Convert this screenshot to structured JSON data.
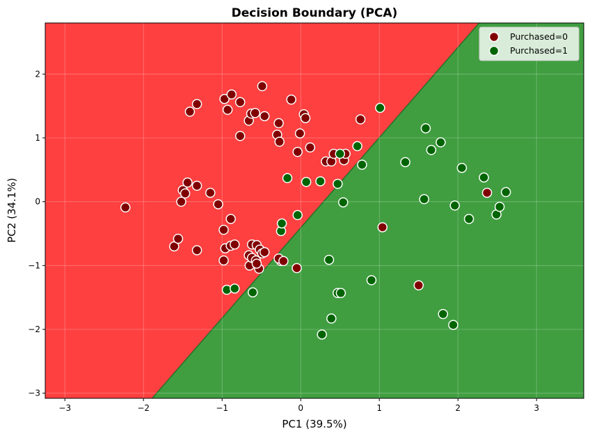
{
  "chart_data": {
    "type": "scatter",
    "title": "Decision Boundary (PCA)",
    "xlabel": "PC1 (39.5%)",
    "ylabel": "PC2 (34.1%)",
    "xlim": [
      -3.25,
      3.6
    ],
    "ylim": [
      -3.08,
      2.8
    ],
    "xticks": [
      -3,
      -2,
      -1,
      0,
      1,
      2,
      3
    ],
    "yticks": [
      -3,
      -2,
      -1,
      0,
      1,
      2
    ],
    "grid": true,
    "legend_position": "top-right",
    "regions": [
      {
        "class": "Purchased=0",
        "color": "#ff4040",
        "side": "upper-left"
      },
      {
        "class": "Purchased=1",
        "color": "#409e40",
        "side": "lower-right"
      }
    ],
    "boundary": {
      "x": [
        -1.89,
        2.27
      ],
      "y": [
        -3.08,
        2.8
      ]
    },
    "series": [
      {
        "name": "Purchased=0",
        "color": "#800000",
        "points": [
          [
            -2.23,
            -0.09
          ],
          [
            -1.52,
            0.0
          ],
          [
            -1.5,
            0.18
          ],
          [
            -1.47,
            0.13
          ],
          [
            -1.44,
            0.3
          ],
          [
            -1.32,
            0.25
          ],
          [
            -1.15,
            0.14
          ],
          [
            -1.05,
            -0.04
          ],
          [
            -0.98,
            -0.44
          ],
          [
            -0.96,
            -0.73
          ],
          [
            -0.89,
            -0.27
          ],
          [
            -0.89,
            -0.69
          ],
          [
            -0.84,
            -0.67
          ],
          [
            -0.98,
            -0.92
          ],
          [
            -1.61,
            -0.7
          ],
          [
            -1.56,
            -0.58
          ],
          [
            -1.32,
            -0.76
          ],
          [
            -0.97,
            1.61
          ],
          [
            -0.93,
            1.44
          ],
          [
            -0.88,
            1.68
          ],
          [
            -0.77,
            1.56
          ],
          [
            -0.77,
            1.03
          ],
          [
            -0.66,
            1.27
          ],
          [
            -0.63,
            1.38
          ],
          [
            -0.58,
            1.39
          ],
          [
            -0.49,
            1.81
          ],
          [
            -0.46,
            1.34
          ],
          [
            -0.28,
            1.23
          ],
          [
            -0.3,
            1.05
          ],
          [
            -0.27,
            0.94
          ],
          [
            -0.12,
            1.6
          ],
          [
            -0.04,
            0.78
          ],
          [
            -0.01,
            1.07
          ],
          [
            0.04,
            1.37
          ],
          [
            0.06,
            1.31
          ],
          [
            0.12,
            0.85
          ],
          [
            0.32,
            0.63
          ],
          [
            0.39,
            0.63
          ],
          [
            0.42,
            0.75
          ],
          [
            0.55,
            0.65
          ],
          [
            0.57,
            0.75
          ],
          [
            0.76,
            1.29
          ],
          [
            -1.41,
            1.41
          ],
          [
            -1.32,
            1.53
          ],
          [
            -0.66,
            -0.84
          ],
          [
            -0.65,
            -1.0
          ],
          [
            -0.62,
            -0.67
          ],
          [
            -0.62,
            -0.88
          ],
          [
            -0.57,
            -0.92
          ],
          [
            -0.56,
            -0.68
          ],
          [
            -0.52,
            -0.75
          ],
          [
            -0.49,
            -0.81
          ],
          [
            -0.46,
            -0.79
          ],
          [
            -0.53,
            -1.05
          ],
          [
            -0.56,
            -0.97
          ],
          [
            -0.25,
            -0.93
          ],
          [
            -0.28,
            -0.89
          ],
          [
            -0.22,
            -0.93
          ],
          [
            -0.05,
            -1.04
          ],
          [
            1.04,
            -0.4
          ],
          [
            1.5,
            -1.31
          ],
          [
            2.37,
            0.14
          ]
        ]
      },
      {
        "name": "Purchased=1",
        "color": "#006400",
        "points": [
          [
            -0.94,
            -1.38
          ],
          [
            -0.84,
            -1.36
          ],
          [
            -0.61,
            -1.42
          ],
          [
            -0.25,
            -0.46
          ],
          [
            -0.24,
            -0.34
          ],
          [
            -0.17,
            0.37
          ],
          [
            -0.04,
            -0.21
          ],
          [
            0.07,
            0.31
          ],
          [
            0.25,
            0.32
          ],
          [
            0.36,
            -0.91
          ],
          [
            0.39,
            -1.83
          ],
          [
            0.27,
            -2.08
          ],
          [
            0.47,
            -1.43
          ],
          [
            0.51,
            -1.43
          ],
          [
            0.47,
            0.28
          ],
          [
            0.5,
            0.75
          ],
          [
            0.54,
            -0.01
          ],
          [
            0.72,
            0.87
          ],
          [
            0.78,
            0.58
          ],
          [
            0.9,
            -1.23
          ],
          [
            1.01,
            1.47
          ],
          [
            1.33,
            0.62
          ],
          [
            1.57,
            0.04
          ],
          [
            1.59,
            1.15
          ],
          [
            1.66,
            0.81
          ],
          [
            1.78,
            0.93
          ],
          [
            1.81,
            -1.76
          ],
          [
            1.94,
            -1.93
          ],
          [
            1.96,
            -0.06
          ],
          [
            2.05,
            0.53
          ],
          [
            2.14,
            -0.27
          ],
          [
            2.33,
            0.38
          ],
          [
            2.49,
            -0.2
          ],
          [
            2.53,
            -0.08
          ],
          [
            2.61,
            0.15
          ]
        ]
      }
    ]
  }
}
